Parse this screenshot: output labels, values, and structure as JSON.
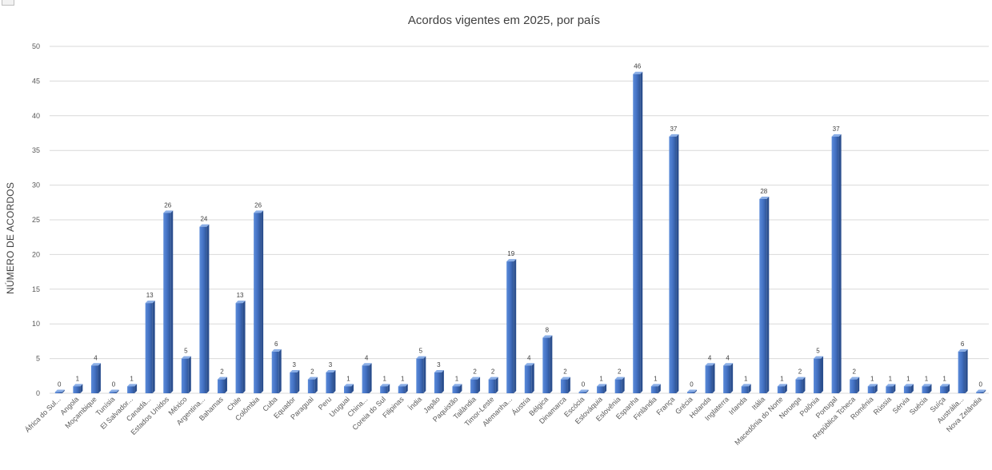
{
  "chart_data": {
    "type": "bar",
    "title": "Acordos vigentes em 2025, por país",
    "xlabel": "",
    "ylabel": "NÚMERO DE ACORDOS",
    "ylim": [
      0,
      50
    ],
    "yticks": [
      0,
      5,
      10,
      15,
      20,
      25,
      30,
      35,
      40,
      45,
      50
    ],
    "grid": true,
    "legend": "none",
    "bar_color": "#4472C4",
    "categories": [
      "África do Sul...",
      "Angola",
      "Moçambique",
      "Tunísia",
      "El Salvador...",
      "Canadá...",
      "Estados Unidos",
      "México",
      "Argentina...",
      "Bahamas",
      "Chile",
      "Colômbia",
      "Cuba",
      "Equador",
      "Paraguai",
      "Peru",
      "Uruguai",
      "China...",
      "Coreia do Sul",
      "Filipinas",
      "Índia",
      "Japão",
      "Paquistão",
      "Tailândia",
      "Timor-Leste",
      "Alemanha...",
      "Áustria",
      "Bélgica",
      "Dinamarca",
      "Escócia",
      "Eslováquia",
      "Eslovênia",
      "Espanha",
      "Finlândia",
      "França",
      "Grécia",
      "Holanda",
      "Inglaterra",
      "Irlanda",
      "Itália",
      "Macedônia do Norte",
      "Noruega",
      "Polônia",
      "Portugal",
      "República Tcheca",
      "Romênia",
      "Rússia",
      "Sérvia",
      "Suécia",
      "Suíça",
      "Austrália...",
      "Nova Zelândia"
    ],
    "values": [
      0,
      1,
      4,
      0,
      1,
      13,
      26,
      5,
      24,
      2,
      13,
      26,
      6,
      3,
      2,
      3,
      1,
      4,
      1,
      1,
      5,
      3,
      1,
      2,
      2,
      19,
      4,
      8,
      2,
      0,
      1,
      2,
      46,
      1,
      37,
      0,
      4,
      4,
      1,
      28,
      1,
      2,
      5,
      37,
      2,
      1,
      1,
      1,
      1,
      1,
      6,
      0
    ]
  }
}
